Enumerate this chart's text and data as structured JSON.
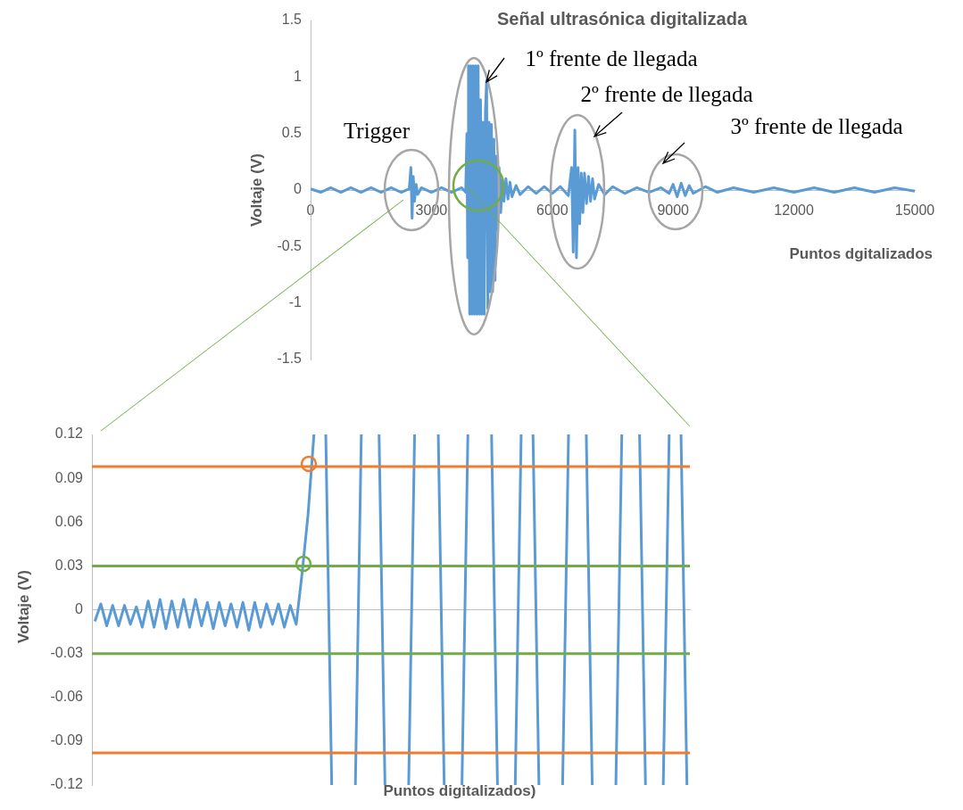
{
  "chart_data": [
    {
      "type": "line",
      "title": "Señal ultrasónica digitalizada",
      "xlabel": "Puntos dgitalizados",
      "ylabel": "Voltaje (V)",
      "xlim": [
        0,
        15000
      ],
      "xticks": [
        0,
        3000,
        6000,
        9000,
        12000,
        15000
      ],
      "ylim": [
        -1.5,
        1.5
      ],
      "yticks": [
        -1.5,
        -1,
        -0.5,
        0,
        0.5,
        1,
        1.5
      ],
      "annotations": [
        "Trigger",
        "1º frente de llegada",
        "2º frente de llegada",
        "3º frente de llegada"
      ],
      "series": [
        {
          "color": "#5b9bd5",
          "x": [
            0,
            250,
            500,
            750,
            1000,
            1250,
            1500,
            1750,
            2000,
            2250,
            2450,
            2490,
            2520,
            2550,
            2580,
            2620,
            2660,
            2750,
            3000,
            3250,
            3500,
            3750,
            3850,
            3880,
            3900,
            3920,
            3950,
            3980,
            4010,
            4040,
            4070,
            4100,
            4130,
            4160,
            4190,
            4220,
            4250,
            4280,
            4310,
            4340,
            4370,
            4400,
            4430,
            4460,
            4490,
            4520,
            4550,
            4580,
            4610,
            4640,
            4680,
            4720,
            4760,
            4800,
            4850,
            4900,
            4950,
            5000,
            5100,
            5200,
            5400,
            5600,
            5800,
            6000,
            6200,
            6400,
            6480,
            6520,
            6560,
            6600,
            6640,
            6680,
            6720,
            6760,
            6800,
            6850,
            6900,
            6950,
            7000,
            7050,
            7150,
            7300,
            7500,
            7800,
            8100,
            8400,
            8700,
            8900,
            9000,
            9100,
            9200,
            9300,
            9400,
            9500,
            9800,
            10100,
            10500,
            11000,
            11500,
            12000,
            12500,
            13000,
            13500,
            14000,
            14500,
            15000
          ],
          "values": [
            0.01,
            -0.02,
            0.02,
            -0.02,
            0.02,
            -0.02,
            0.02,
            -0.02,
            0.02,
            -0.02,
            0.01,
            0.2,
            -0.25,
            0.12,
            -0.1,
            0.05,
            -0.04,
            0.02,
            -0.02,
            0.02,
            -0.02,
            0.02,
            -0.02,
            0.5,
            -0.6,
            1.1,
            -1.1,
            1.1,
            -1.1,
            1.1,
            -1.1,
            1.1,
            -1.1,
            1.1,
            -1.1,
            0.8,
            -1.1,
            0.6,
            -1.1,
            0.7,
            0.97,
            -1.05,
            0.6,
            -0.9,
            0.58,
            -0.9,
            0.45,
            -0.8,
            0.3,
            -0.35,
            0.2,
            -0.2,
            0.1,
            -0.1,
            0.1,
            -0.08,
            0.07,
            -0.06,
            0.04,
            -0.04,
            0.03,
            -0.03,
            0.03,
            -0.03,
            0.03,
            -0.05,
            0.2,
            -0.55,
            0.53,
            -0.6,
            0.2,
            -0.3,
            0.15,
            -0.2,
            0.15,
            -0.12,
            0.12,
            -0.1,
            0.1,
            -0.08,
            0.05,
            -0.04,
            0.03,
            -0.03,
            0.02,
            -0.02,
            0.02,
            -0.03,
            0.05,
            -0.06,
            0.06,
            -0.05,
            0.04,
            -0.03,
            0.03,
            -0.02,
            0.02,
            -0.02,
            0.02,
            -0.02,
            0.02,
            -0.02,
            0.02,
            -0.02,
            0.02,
            -0.01
          ]
        }
      ]
    },
    {
      "type": "line",
      "xlabel": "Puntos digitalizados)",
      "ylabel": "Voltaje (V)",
      "tick_labels": "y",
      "ylim": [
        -0.12,
        0.12
      ],
      "yticks": [
        -0.12,
        -0.09,
        -0.06,
        -0.03,
        0,
        0.03,
        0.06,
        0.09,
        0.12
      ],
      "categories": [
        null,
        null,
        null,
        null,
        null,
        null,
        null,
        null,
        null,
        null,
        null,
        null,
        null,
        null,
        null,
        null,
        null,
        null,
        null,
        null,
        null,
        null,
        null,
        null,
        null,
        null,
        null,
        null,
        null,
        null,
        null,
        null,
        null,
        null,
        null,
        null,
        null,
        null,
        null,
        null,
        null,
        null,
        null,
        null,
        null,
        null,
        null,
        null,
        null,
        null,
        null,
        null,
        null,
        null,
        null,
        null,
        null,
        null,
        null,
        null,
        null,
        null,
        null,
        null,
        null,
        null,
        null,
        null,
        null,
        null,
        null,
        null,
        null,
        null,
        null,
        null,
        null,
        null,
        null,
        null,
        null,
        null,
        null,
        null,
        null,
        null,
        null,
        null,
        null,
        null,
        null,
        null,
        null,
        null,
        null,
        null,
        null,
        null,
        null,
        null,
        null
      ],
      "ref_lines": [
        {
          "axis": "y",
          "value": 0.098,
          "color": "#ed7d31"
        },
        {
          "axis": "y",
          "value": 0.03,
          "color": "#70ad47"
        },
        {
          "axis": "y",
          "value": -0.03,
          "color": "#70ad47"
        },
        {
          "axis": "y",
          "value": -0.098,
          "color": "#ed7d31"
        }
      ],
      "series": [
        {
          "color": "#5b9bd5",
          "values": [
            -0.008,
            0.004,
            -0.011,
            0.003,
            -0.011,
            0.003,
            -0.01,
            0.002,
            -0.012,
            0.006,
            -0.012,
            0.007,
            -0.013,
            0.006,
            -0.012,
            0.007,
            -0.012,
            0.007,
            -0.011,
            0.005,
            -0.013,
            0.005,
            -0.011,
            0.004,
            -0.012,
            0.005,
            -0.014,
            0.005,
            -0.012,
            0.004,
            -0.01,
            0.004,
            -0.012,
            0.003,
            -0.01,
            0.025,
            0.065,
            0.12,
            null,
            0.12,
            -0.12,
            null,
            null,
            null,
            -0.12,
            0.12,
            null,
            null,
            0.12,
            -0.12,
            null,
            null,
            null,
            -0.12,
            0.12,
            null,
            null,
            null,
            0.12,
            -0.12,
            null,
            null,
            -0.12,
            0.12,
            null,
            null,
            null,
            0.12,
            -0.12,
            null,
            null,
            -0.12,
            0.12,
            null,
            0.12,
            -0.12,
            null,
            null,
            null,
            -0.12,
            0.12,
            null,
            null,
            0.12,
            -0.12,
            null,
            null,
            null,
            -0.12,
            0.12,
            null,
            null,
            0.12,
            -0.12,
            null,
            null,
            -0.12,
            0.12,
            null,
            0.12,
            -0.12
          ]
        }
      ]
    }
  ]
}
